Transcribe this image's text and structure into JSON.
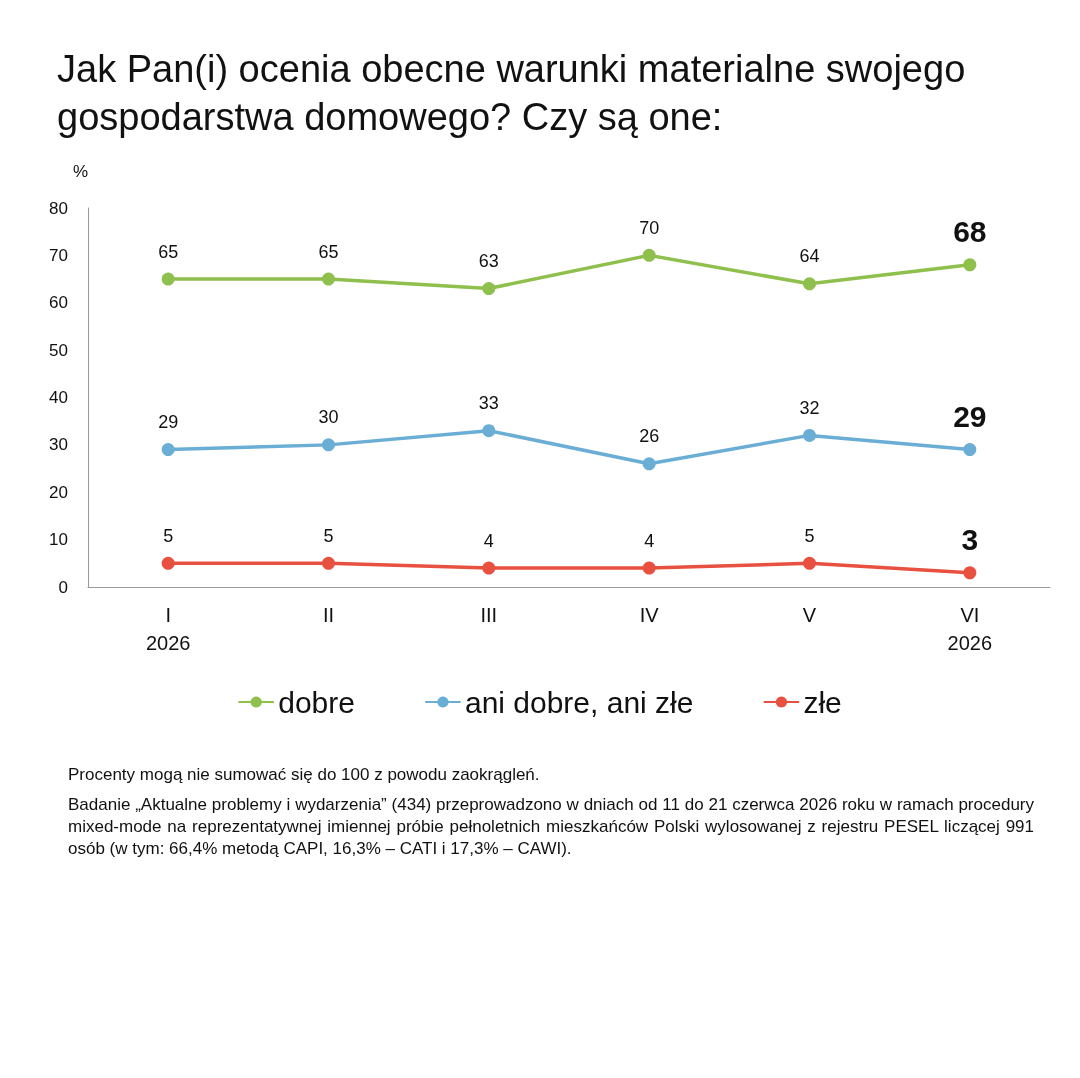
{
  "chart_data": {
    "type": "line",
    "title": "Jak Pan(i) ocenia obecne warunki materialne swojego gospodarstwa domowego? Czy są one:",
    "ylabel": "%",
    "categories": [
      "I\n2026",
      "II",
      "III",
      "IV",
      "V",
      "VI\n2026"
    ],
    "series": [
      {
        "name": "dobre",
        "color": "#8fbf4d",
        "values": [
          65,
          65,
          63,
          70,
          64,
          68
        ]
      },
      {
        "name": "ani dobre, ani złe",
        "color": "#6aaed6",
        "values": [
          29,
          30,
          33,
          26,
          32,
          29
        ]
      },
      {
        "name": "złe",
        "color": "#e8503f",
        "values": [
          5,
          5,
          4,
          4,
          5,
          3
        ]
      }
    ],
    "ylim": [
      0,
      80
    ],
    "yticks": [
      0,
      10,
      20,
      30,
      40,
      50,
      60,
      70,
      80
    ],
    "grid": false,
    "legend": "bottom",
    "marker": "circle",
    "line_style": "solid",
    "data_labels": true,
    "annotations": [
      "Procenty mogą nie sumować się do 100 z powodu zaokrągleń.",
      "Badanie „Aktualne problemy i wydarzenia” (434) przeprowadzono w dniach od 11 do 21 czerwca 2026 roku w ramach procedury mixed-mode na reprezentatywnej imiennej próbie pełnoletnich mieszkańców Polski wylosowanej z rejestru PESEL liczącej  991 osób (w tym: 66,4% metodą CAPI, 16,3% – CATI i 17,3% – CAWI)."
    ]
  }
}
